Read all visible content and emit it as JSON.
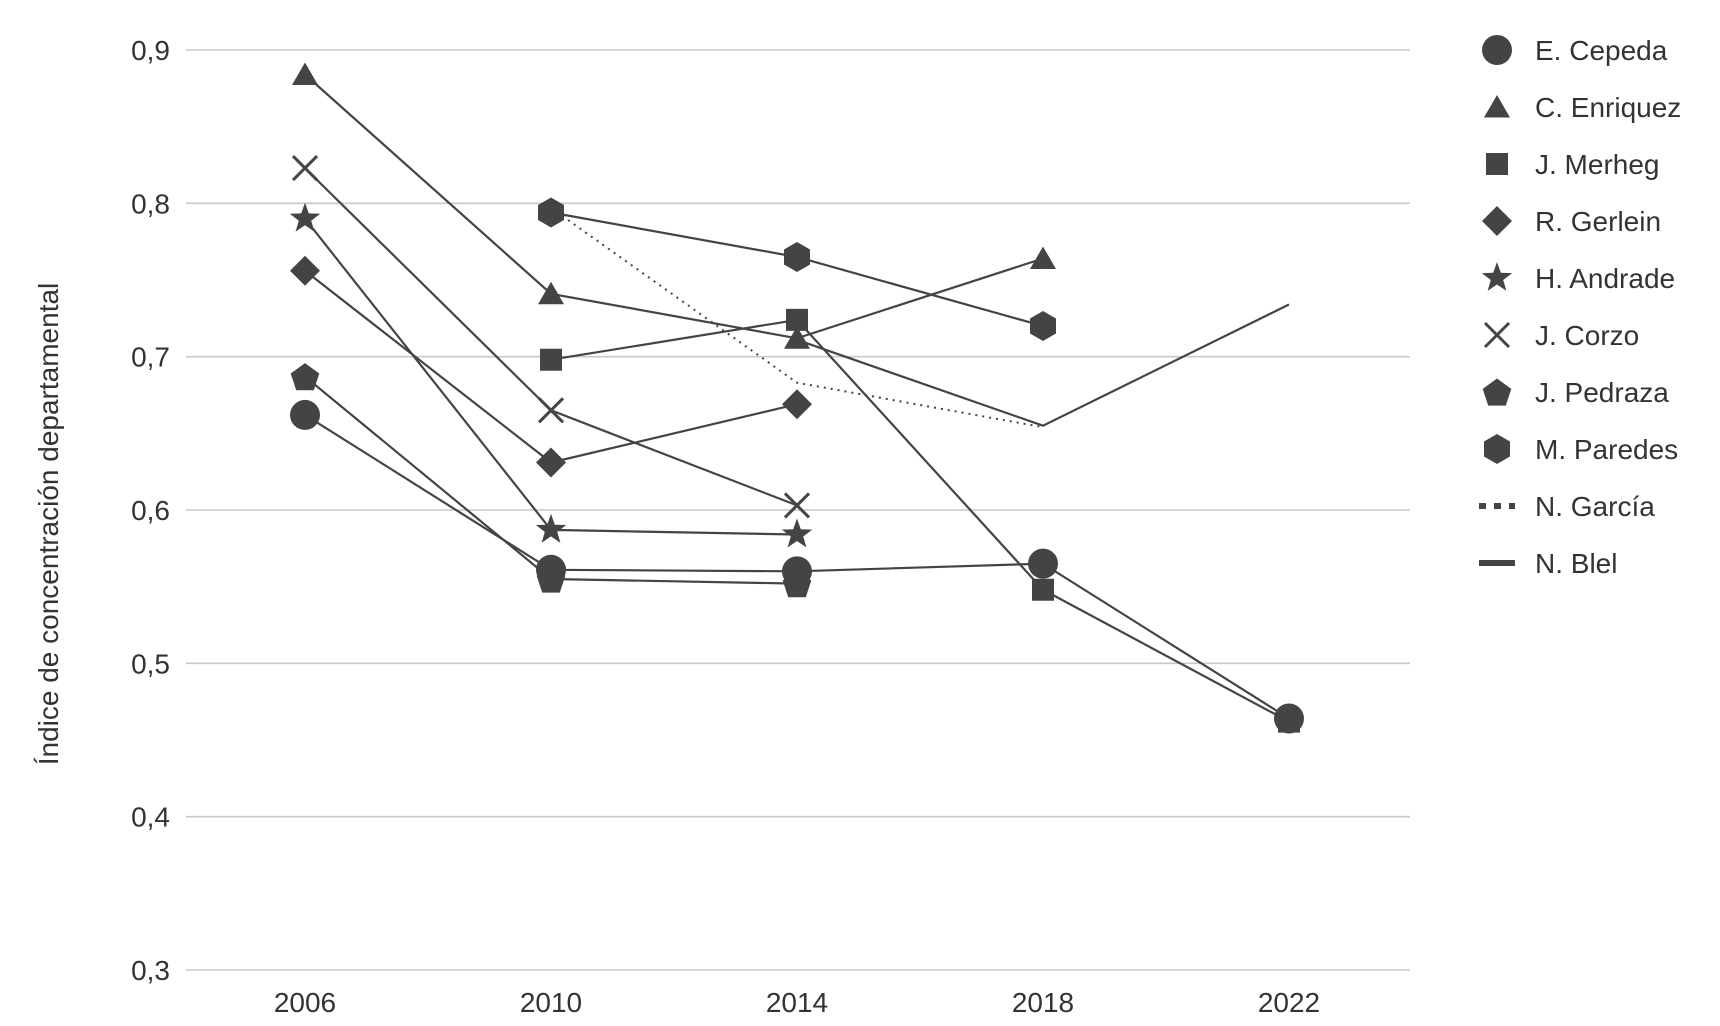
{
  "chart_data": {
    "type": "line",
    "title": "",
    "xlabel": "",
    "ylabel": "Índice de concentración departamental",
    "x": [
      "2006",
      "2010",
      "2014",
      "2018",
      "2022"
    ],
    "y_ticks": [
      "0,3",
      "0,4",
      "0,5",
      "0,6",
      "0,7",
      "0,8",
      "0,9"
    ],
    "ylim": [
      0.3,
      0.9
    ],
    "grid": true,
    "legend_position": "right",
    "colors": {
      "series": "#444444",
      "grid": "#c8c8c8",
      "text": "#333333"
    },
    "series": [
      {
        "name": "E. Cepeda",
        "marker": "circle",
        "line": "solid",
        "values": [
          0.662,
          0.561,
          0.56,
          0.565,
          0.464
        ]
      },
      {
        "name": "C. Enriquez",
        "marker": "triangle",
        "line": "solid",
        "values": [
          0.884,
          0.741,
          0.712,
          0.764,
          null
        ]
      },
      {
        "name": "J. Merheg",
        "marker": "square",
        "line": "solid",
        "values": [
          null,
          0.698,
          0.724,
          0.548,
          0.462
        ]
      },
      {
        "name": "R. Gerlein",
        "marker": "diamond",
        "line": "solid",
        "values": [
          0.756,
          0.631,
          0.669,
          null,
          null
        ]
      },
      {
        "name": "H. Andrade",
        "marker": "star",
        "line": "solid",
        "values": [
          0.79,
          0.587,
          0.584,
          null,
          null
        ]
      },
      {
        "name": "J. Corzo",
        "marker": "x",
        "line": "solid",
        "values": [
          0.823,
          0.665,
          0.603,
          null,
          null
        ]
      },
      {
        "name": "J. Pedraza",
        "marker": "pentagon",
        "line": "solid",
        "values": [
          0.687,
          0.555,
          0.552,
          null,
          null
        ]
      },
      {
        "name": "M. Paredes",
        "marker": "hexagon",
        "line": "solid",
        "values": [
          null,
          0.794,
          0.765,
          0.72,
          null
        ]
      },
      {
        "name": "N. García",
        "marker": "none",
        "line": "dotted",
        "values": [
          null,
          0.797,
          0.683,
          0.654,
          null
        ]
      },
      {
        "name": "N. Blel",
        "marker": "none",
        "line": "solid",
        "values": [
          null,
          null,
          0.711,
          0.655,
          0.734
        ]
      }
    ]
  }
}
